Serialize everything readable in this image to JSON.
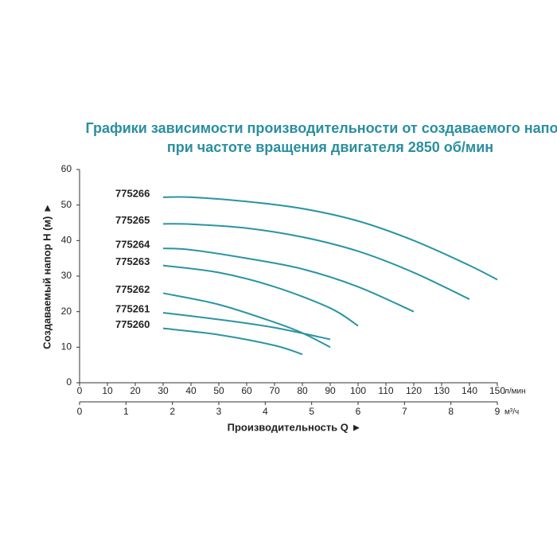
{
  "chart_data": {
    "type": "line",
    "title": [
      "Графики зависимости производительности от создаваемого напора",
      "при частоте вращения двигателя 2850 об/мин"
    ],
    "y_label": "Создаваемый напор H (м) ►",
    "x_label": "Производительность Q ►",
    "x_unit": "л/мин",
    "x2_unit": "м³/ч",
    "xlim": [
      0,
      150
    ],
    "xticks": [
      0,
      10,
      20,
      30,
      40,
      50,
      60,
      70,
      80,
      90,
      100,
      110,
      120,
      130,
      140,
      150
    ],
    "x2lim": [
      0,
      9
    ],
    "x2ticks": [
      0,
      1,
      2,
      3,
      4,
      5,
      6,
      7,
      8,
      9
    ],
    "ylim": [
      0,
      60
    ],
    "yticks": [
      0,
      10,
      20,
      30,
      40,
      50,
      60
    ],
    "series": [
      {
        "name": "775266",
        "color": "#2a94a4",
        "x": [
          30,
          40,
          60,
          80,
          100,
          120,
          140,
          150
        ],
        "values": [
          52.2,
          52.2,
          51,
          49,
          45.5,
          40,
          33,
          29
        ]
      },
      {
        "name": "775265",
        "color": "#2a94a4",
        "x": [
          30,
          40,
          60,
          80,
          100,
          120,
          140
        ],
        "values": [
          44.7,
          44.6,
          43.5,
          41,
          37,
          31,
          23.5
        ]
      },
      {
        "name": "775264",
        "color": "#2a94a4",
        "x": [
          30,
          40,
          60,
          80,
          100,
          120
        ],
        "values": [
          37.8,
          37.4,
          35,
          32,
          27,
          20
        ]
      },
      {
        "name": "775263",
        "color": "#2a94a4",
        "x": [
          30,
          50,
          70,
          90,
          100
        ],
        "values": [
          33,
          31,
          27,
          21,
          16
        ]
      },
      {
        "name": "775262",
        "color": "#2a94a4",
        "x": [
          30,
          50,
          70,
          80,
          90
        ],
        "values": [
          25.2,
          22,
          17,
          14,
          10
        ]
      },
      {
        "name": "775261",
        "color": "#2a94a4",
        "x": [
          30,
          50,
          70,
          90
        ],
        "values": [
          19.7,
          17.8,
          15.5,
          12.2
        ]
      },
      {
        "name": "775260",
        "color": "#2a94a4",
        "x": [
          30,
          50,
          70,
          80
        ],
        "values": [
          15.3,
          13.5,
          10.5,
          8
        ]
      }
    ]
  }
}
